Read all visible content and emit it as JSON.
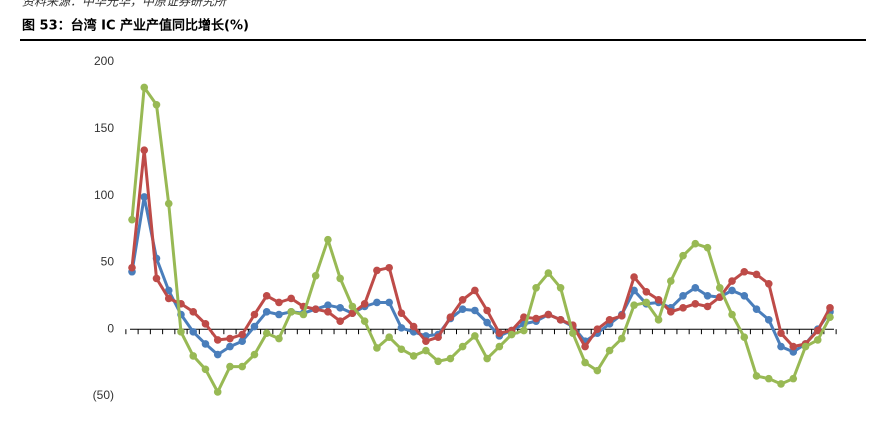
{
  "source": "资料来源：中华光华，中原证券研究所",
  "chart_data": {
    "type": "line",
    "title": "图 53：台湾 IC 产业产值同比增长(%)",
    "ylim": [
      -50,
      200
    ],
    "yticks": [
      200,
      150,
      100,
      50,
      0,
      {
        "value": -50,
        "label": "(50)"
      }
    ],
    "negative_tick_color": "#ff0000",
    "grid": false,
    "series": [
      {
        "color": "#4a7ebb",
        "values": [
          43,
          99,
          53,
          29,
          11,
          -2,
          -11,
          -19,
          -13,
          -9,
          2,
          13,
          11,
          13,
          12,
          15,
          18,
          16,
          12,
          17,
          20,
          20,
          1,
          -2,
          -5,
          -4,
          8,
          15,
          14,
          5,
          -5,
          -1,
          4,
          6,
          11,
          7,
          2,
          -9,
          -3,
          4,
          11,
          29,
          19,
          20,
          16,
          25,
          31,
          25,
          24,
          29,
          25,
          15,
          7,
          -13,
          -17,
          -11,
          0,
          13
        ]
      },
      {
        "color": "#be4b48",
        "values": [
          46,
          134,
          38,
          23,
          19,
          13,
          4,
          -8,
          -7,
          -4,
          11,
          25,
          20,
          23,
          17,
          15,
          13,
          6,
          12,
          19,
          44,
          46,
          12,
          2,
          -9,
          -6,
          9,
          22,
          29,
          14,
          -3,
          -1,
          9,
          8,
          11,
          7,
          3,
          -13,
          0,
          7,
          10,
          39,
          28,
          22,
          13,
          16,
          19,
          17,
          24,
          36,
          43,
          41,
          34,
          -3,
          -13,
          -11,
          -1,
          16
        ]
      },
      {
        "color": "#98b954",
        "values": [
          82,
          181,
          168,
          94,
          -2,
          -20,
          -30,
          -47,
          -28,
          -28,
          -19,
          -3,
          -7,
          13,
          11,
          40,
          67,
          38,
          17,
          6,
          -14,
          -6,
          -15,
          -20,
          -16,
          -24,
          -22,
          -13,
          -5,
          -22,
          -13,
          -4,
          -1,
          31,
          42,
          31,
          -3,
          -25,
          -31,
          -16,
          -7,
          18,
          20,
          7,
          36,
          55,
          64,
          61,
          31,
          11,
          -6,
          -35,
          -37,
          -41,
          -37,
          -13,
          -8,
          9
        ]
      }
    ]
  }
}
